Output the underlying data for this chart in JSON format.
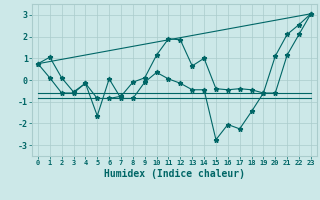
{
  "title": "",
  "xlabel": "Humidex (Indice chaleur)",
  "xlim": [
    -0.5,
    23.5
  ],
  "ylim": [
    -3.5,
    3.5
  ],
  "yticks": [
    -3,
    -2,
    -1,
    0,
    1,
    2,
    3
  ],
  "xticks": [
    0,
    1,
    2,
    3,
    4,
    5,
    6,
    7,
    8,
    9,
    10,
    11,
    12,
    13,
    14,
    15,
    16,
    17,
    18,
    19,
    20,
    21,
    22,
    23
  ],
  "bg_color": "#cce8e8",
  "line_color": "#006666",
  "grid_color": "#aacccc",
  "series": [
    {
      "x": [
        0,
        1,
        2,
        3,
        4,
        5,
        6,
        7,
        8,
        9,
        10,
        11,
        12,
        13,
        14,
        15,
        16,
        17,
        18,
        19,
        20,
        21,
        22,
        23
      ],
      "y": [
        0.75,
        1.05,
        0.1,
        -0.55,
        -0.15,
        -0.85,
        -0.85,
        -0.75,
        -0.1,
        0.1,
        1.15,
        1.9,
        1.85,
        0.65,
        1.0,
        -0.4,
        -0.45,
        -0.4,
        -0.45,
        -0.6,
        1.1,
        2.1,
        2.55,
        3.05
      ],
      "marker": true
    },
    {
      "x": [
        0,
        1,
        2,
        3,
        4,
        5,
        6,
        7,
        8,
        9,
        10,
        11,
        12,
        13,
        14,
        15,
        16,
        17,
        18,
        19,
        20,
        21,
        22,
        23
      ],
      "y": [
        0.75,
        0.1,
        -0.6,
        -0.6,
        -0.15,
        -1.65,
        0.05,
        -0.85,
        -0.85,
        -0.1,
        0.35,
        0.05,
        -0.15,
        -0.45,
        -0.45,
        -2.75,
        -2.05,
        -2.25,
        -1.45,
        -0.6,
        -0.6,
        1.15,
        2.1,
        3.05
      ],
      "marker": true
    },
    {
      "x": [
        0,
        23
      ],
      "y": [
        0.75,
        3.05
      ],
      "marker": false
    },
    {
      "x": [
        0,
        19,
        20,
        21,
        22,
        23
      ],
      "y": [
        -0.6,
        -0.6,
        -0.6,
        -0.6,
        -0.6,
        -0.6
      ],
      "marker": false
    },
    {
      "x": [
        0,
        14,
        15,
        19,
        20,
        23
      ],
      "y": [
        -0.85,
        -0.85,
        -0.85,
        -0.85,
        -0.85,
        -0.85
      ],
      "marker": false
    }
  ]
}
